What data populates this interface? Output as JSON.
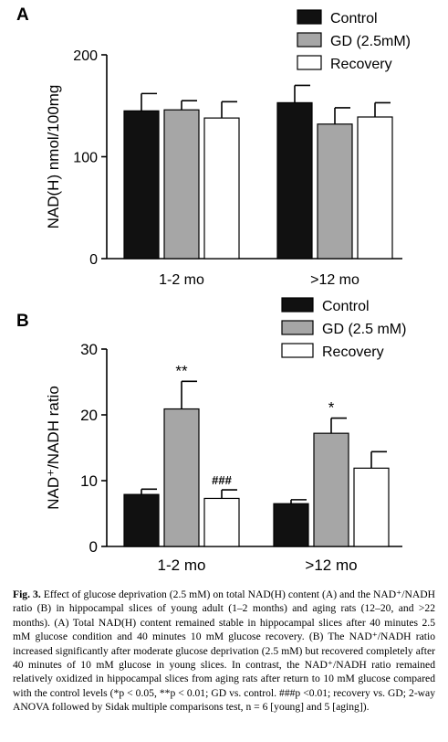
{
  "chart_data": [
    {
      "type": "bar",
      "panel_label": "A",
      "ylabel": "NAD(H) nmol/100mg",
      "ylim": [
        0,
        200
      ],
      "yticks": [
        "0",
        "100",
        "200"
      ],
      "categories": [
        "1-2 mo",
        ">12 mo"
      ],
      "series": [
        {
          "name": "Control",
          "values": [
            145,
            153
          ],
          "errors": [
            17,
            17
          ],
          "color": "#111111"
        },
        {
          "name": "GD (2.5mM)",
          "values": [
            146,
            132
          ],
          "errors": [
            9,
            16
          ],
          "color": "#a6a6a6"
        },
        {
          "name": "Recovery",
          "values": [
            138,
            139
          ],
          "errors": [
            16,
            14
          ],
          "color": "#ffffff"
        }
      ],
      "annotations": [],
      "legend": "top-right",
      "grid": false
    },
    {
      "type": "bar",
      "panel_label": "B",
      "ylabel": "NAD⁺/NADH ratio",
      "ylim": [
        0,
        30
      ],
      "yticks": [
        "0",
        "10",
        "20",
        "30"
      ],
      "categories": [
        "1-2 mo",
        ">12 mo"
      ],
      "series": [
        {
          "name": "Control",
          "values": [
            7.9,
            6.5
          ],
          "errors": [
            0.8,
            0.6
          ],
          "color": "#111111"
        },
        {
          "name": "GD (2.5 mM)",
          "values": [
            20.9,
            17.2
          ],
          "errors": [
            4.2,
            2.3
          ],
          "color": "#a6a6a6"
        },
        {
          "name": "Recovery",
          "values": [
            7.3,
            11.9
          ],
          "errors": [
            1.3,
            2.5
          ],
          "color": "#ffffff"
        }
      ],
      "annotations": [
        {
          "category": 0,
          "series": 1,
          "text": "**"
        },
        {
          "category": 0,
          "series": 2,
          "text": "###"
        },
        {
          "category": 1,
          "series": 1,
          "text": "*"
        }
      ],
      "legend": "top-right",
      "grid": false
    }
  ],
  "caption": {
    "label": "Fig. 3.",
    "text": "Effect of glucose deprivation (2.5 mM) on total NAD(H) content (A) and the NAD⁺/NADH ratio (B) in hippocampal slices of young adult (1–2 months) and aging rats (12–20, and >22 months). (A) Total NAD(H) content remained stable in hippocampal slices after 40 minutes 2.5 mM glucose condition and 40 minutes 10 mM glucose recovery. (B) The NAD⁺/NADH ratio increased significantly after moderate glucose deprivation (2.5 mM) but recovered completely after 40 minutes of 10 mM glucose in young slices. In contrast, the NAD⁺/NADH ratio remained relatively oxidized in hippocampal slices from aging rats after return to 10 mM glucose compared with the control levels (*p < 0.05, **p < 0.01; GD vs. control. ###p <0.01; recovery vs. GD; 2-way ANOVA followed by Sidak multiple comparisons test, n = 6 [young] and 5 [aging])."
  }
}
